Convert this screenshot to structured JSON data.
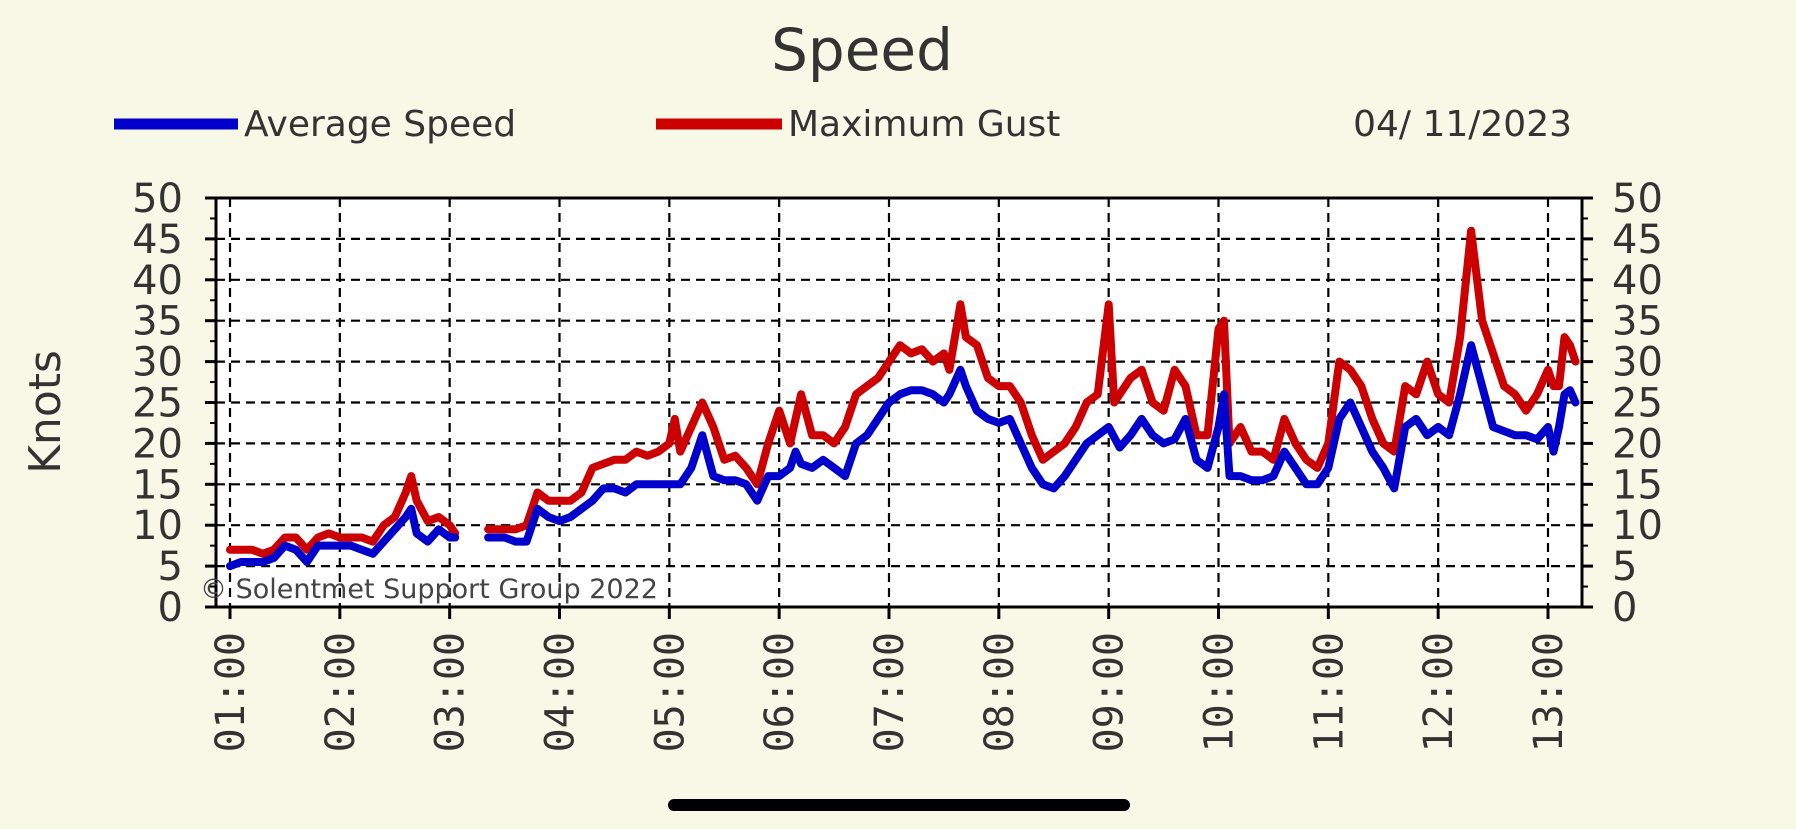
{
  "chart_data": {
    "type": "line",
    "title": "Speed",
    "date": "04/ 11/2023",
    "ylabel": "Knots",
    "copyright": "© Solentmet Support Group 2022",
    "ylim": [
      0,
      50
    ],
    "yticks": [
      0,
      5,
      10,
      15,
      20,
      25,
      30,
      35,
      40,
      45,
      50
    ],
    "x_ticks": [
      "01:00",
      "02:00",
      "03:00",
      "04:00",
      "05:00",
      "06:00",
      "07:00",
      "08:00",
      "09:00",
      "10:00",
      "11:00",
      "12:00",
      "13:00"
    ],
    "x_range_hours": [
      1.0,
      13.25
    ],
    "grid": true,
    "legend_position": "top",
    "series": [
      {
        "name": "Average Speed",
        "color": "#0000cc",
        "points": [
          [
            1.0,
            5
          ],
          [
            1.1,
            5.5
          ],
          [
            1.2,
            5.5
          ],
          [
            1.3,
            5.5
          ],
          [
            1.4,
            6
          ],
          [
            1.5,
            7.5
          ],
          [
            1.6,
            7
          ],
          [
            1.7,
            5.5
          ],
          [
            1.8,
            7.5
          ],
          [
            1.9,
            7.5
          ],
          [
            2.0,
            7.5
          ],
          [
            2.1,
            7.5
          ],
          [
            2.2,
            7
          ],
          [
            2.3,
            6.5
          ],
          [
            2.4,
            8
          ],
          [
            2.5,
            9.5
          ],
          [
            2.6,
            11
          ],
          [
            2.65,
            12
          ],
          [
            2.7,
            9
          ],
          [
            2.8,
            8
          ],
          [
            2.9,
            9.5
          ],
          [
            3.0,
            8.5
          ],
          [
            3.05,
            8.5
          ],
          [
            null,
            null
          ],
          [
            3.35,
            8.5
          ],
          [
            3.5,
            8.5
          ],
          [
            3.6,
            8
          ],
          [
            3.7,
            8
          ],
          [
            3.8,
            12
          ],
          [
            3.9,
            11
          ],
          [
            4.0,
            10.5
          ],
          [
            4.1,
            11
          ],
          [
            4.2,
            12
          ],
          [
            4.3,
            13
          ],
          [
            4.4,
            14.5
          ],
          [
            4.5,
            14.5
          ],
          [
            4.6,
            14
          ],
          [
            4.7,
            15
          ],
          [
            4.8,
            15
          ],
          [
            4.9,
            15
          ],
          [
            5.0,
            15
          ],
          [
            5.1,
            15
          ],
          [
            5.2,
            17
          ],
          [
            5.3,
            21
          ],
          [
            5.4,
            16
          ],
          [
            5.5,
            15.5
          ],
          [
            5.6,
            15.5
          ],
          [
            5.7,
            15
          ],
          [
            5.8,
            13
          ],
          [
            5.9,
            16
          ],
          [
            6.0,
            16
          ],
          [
            6.1,
            17
          ],
          [
            6.15,
            19
          ],
          [
            6.2,
            17.5
          ],
          [
            6.3,
            17
          ],
          [
            6.4,
            18
          ],
          [
            6.5,
            17
          ],
          [
            6.6,
            16
          ],
          [
            6.7,
            20
          ],
          [
            6.8,
            21
          ],
          [
            6.9,
            23
          ],
          [
            7.0,
            25
          ],
          [
            7.1,
            26
          ],
          [
            7.2,
            26.5
          ],
          [
            7.3,
            26.5
          ],
          [
            7.4,
            26
          ],
          [
            7.5,
            25
          ],
          [
            7.55,
            26
          ],
          [
            7.65,
            29
          ],
          [
            7.7,
            27
          ],
          [
            7.8,
            24
          ],
          [
            7.9,
            23
          ],
          [
            8.0,
            22.5
          ],
          [
            8.1,
            23
          ],
          [
            8.2,
            20
          ],
          [
            8.3,
            17
          ],
          [
            8.4,
            15
          ],
          [
            8.5,
            14.5
          ],
          [
            8.6,
            16
          ],
          [
            8.7,
            18
          ],
          [
            8.8,
            20
          ],
          [
            8.9,
            21
          ],
          [
            9.0,
            22
          ],
          [
            9.1,
            19.5
          ],
          [
            9.2,
            21
          ],
          [
            9.3,
            23
          ],
          [
            9.4,
            21
          ],
          [
            9.5,
            20
          ],
          [
            9.6,
            20.5
          ],
          [
            9.7,
            23
          ],
          [
            9.8,
            18
          ],
          [
            9.9,
            17
          ],
          [
            10.0,
            22
          ],
          [
            10.05,
            26
          ],
          [
            10.1,
            16
          ],
          [
            10.2,
            16
          ],
          [
            10.3,
            15.5
          ],
          [
            10.4,
            15.5
          ],
          [
            10.5,
            16
          ],
          [
            10.6,
            19
          ],
          [
            10.7,
            17
          ],
          [
            10.8,
            15
          ],
          [
            10.9,
            15
          ],
          [
            11.0,
            17
          ],
          [
            11.1,
            23
          ],
          [
            11.2,
            25
          ],
          [
            11.3,
            22
          ],
          [
            11.4,
            19
          ],
          [
            11.5,
            17
          ],
          [
            11.6,
            14.5
          ],
          [
            11.7,
            22
          ],
          [
            11.8,
            23
          ],
          [
            11.9,
            21
          ],
          [
            12.0,
            22
          ],
          [
            12.1,
            21
          ],
          [
            12.2,
            26
          ],
          [
            12.3,
            32
          ],
          [
            12.4,
            27
          ],
          [
            12.5,
            22
          ],
          [
            12.6,
            21.5
          ],
          [
            12.7,
            21
          ],
          [
            12.8,
            21
          ],
          [
            12.9,
            20.5
          ],
          [
            13.0,
            22
          ],
          [
            13.05,
            19
          ],
          [
            13.1,
            22
          ],
          [
            13.15,
            26
          ],
          [
            13.2,
            26.5
          ],
          [
            13.25,
            25
          ]
        ]
      },
      {
        "name": "Maximum Gust",
        "color": "#cc0000",
        "points": [
          [
            1.0,
            7
          ],
          [
            1.1,
            7
          ],
          [
            1.2,
            7
          ],
          [
            1.3,
            6.5
          ],
          [
            1.4,
            7
          ],
          [
            1.5,
            8.5
          ],
          [
            1.6,
            8.5
          ],
          [
            1.7,
            7
          ],
          [
            1.8,
            8.5
          ],
          [
            1.9,
            9
          ],
          [
            2.0,
            8.5
          ],
          [
            2.1,
            8.5
          ],
          [
            2.2,
            8.5
          ],
          [
            2.3,
            8
          ],
          [
            2.4,
            10
          ],
          [
            2.5,
            11
          ],
          [
            2.6,
            14
          ],
          [
            2.65,
            16
          ],
          [
            2.7,
            13
          ],
          [
            2.8,
            10.5
          ],
          [
            2.9,
            11
          ],
          [
            3.0,
            10
          ],
          [
            3.05,
            9
          ],
          [
            null,
            null
          ],
          [
            3.35,
            9.5
          ],
          [
            3.5,
            9.5
          ],
          [
            3.6,
            9.5
          ],
          [
            3.7,
            10
          ],
          [
            3.8,
            14
          ],
          [
            3.9,
            13
          ],
          [
            4.0,
            13
          ],
          [
            4.1,
            13
          ],
          [
            4.2,
            14
          ],
          [
            4.3,
            17
          ],
          [
            4.4,
            17.5
          ],
          [
            4.5,
            18
          ],
          [
            4.6,
            18
          ],
          [
            4.7,
            19
          ],
          [
            4.8,
            18.5
          ],
          [
            4.9,
            19
          ],
          [
            5.0,
            20
          ],
          [
            5.05,
            23
          ],
          [
            5.1,
            19
          ],
          [
            5.2,
            22
          ],
          [
            5.3,
            25
          ],
          [
            5.4,
            22
          ],
          [
            5.5,
            18
          ],
          [
            5.6,
            18.5
          ],
          [
            5.7,
            17
          ],
          [
            5.8,
            15
          ],
          [
            5.9,
            20
          ],
          [
            6.0,
            24
          ],
          [
            6.1,
            20
          ],
          [
            6.2,
            26
          ],
          [
            6.3,
            21
          ],
          [
            6.4,
            21
          ],
          [
            6.5,
            20
          ],
          [
            6.6,
            22
          ],
          [
            6.7,
            26
          ],
          [
            6.8,
            27
          ],
          [
            6.9,
            28
          ],
          [
            7.0,
            30
          ],
          [
            7.1,
            32
          ],
          [
            7.2,
            31
          ],
          [
            7.3,
            31.5
          ],
          [
            7.4,
            30
          ],
          [
            7.5,
            31
          ],
          [
            7.55,
            29
          ],
          [
            7.65,
            37
          ],
          [
            7.7,
            33
          ],
          [
            7.8,
            32
          ],
          [
            7.9,
            28
          ],
          [
            8.0,
            27
          ],
          [
            8.1,
            27
          ],
          [
            8.2,
            25
          ],
          [
            8.3,
            21
          ],
          [
            8.4,
            18
          ],
          [
            8.5,
            19
          ],
          [
            8.6,
            20
          ],
          [
            8.7,
            22
          ],
          [
            8.8,
            25
          ],
          [
            8.9,
            26
          ],
          [
            9.0,
            37
          ],
          [
            9.05,
            25
          ],
          [
            9.1,
            26
          ],
          [
            9.2,
            28
          ],
          [
            9.3,
            29
          ],
          [
            9.4,
            25
          ],
          [
            9.5,
            24
          ],
          [
            9.6,
            29
          ],
          [
            9.7,
            27
          ],
          [
            9.8,
            21
          ],
          [
            9.9,
            21
          ],
          [
            10.0,
            34
          ],
          [
            10.05,
            35
          ],
          [
            10.1,
            20
          ],
          [
            10.2,
            22
          ],
          [
            10.3,
            19
          ],
          [
            10.4,
            19
          ],
          [
            10.5,
            18
          ],
          [
            10.6,
            23
          ],
          [
            10.7,
            20
          ],
          [
            10.8,
            18
          ],
          [
            10.9,
            17
          ],
          [
            11.0,
            20
          ],
          [
            11.1,
            30
          ],
          [
            11.2,
            29
          ],
          [
            11.3,
            27
          ],
          [
            11.4,
            23
          ],
          [
            11.5,
            20
          ],
          [
            11.6,
            19
          ],
          [
            11.7,
            27
          ],
          [
            11.8,
            26
          ],
          [
            11.9,
            30
          ],
          [
            12.0,
            26
          ],
          [
            12.1,
            25
          ],
          [
            12.2,
            33
          ],
          [
            12.3,
            46
          ],
          [
            12.4,
            35
          ],
          [
            12.5,
            31
          ],
          [
            12.6,
            27
          ],
          [
            12.7,
            26
          ],
          [
            12.8,
            24
          ],
          [
            12.9,
            26
          ],
          [
            13.0,
            29
          ],
          [
            13.05,
            27
          ],
          [
            13.1,
            27
          ],
          [
            13.15,
            33
          ],
          [
            13.2,
            32
          ],
          [
            13.25,
            30
          ]
        ]
      }
    ]
  }
}
